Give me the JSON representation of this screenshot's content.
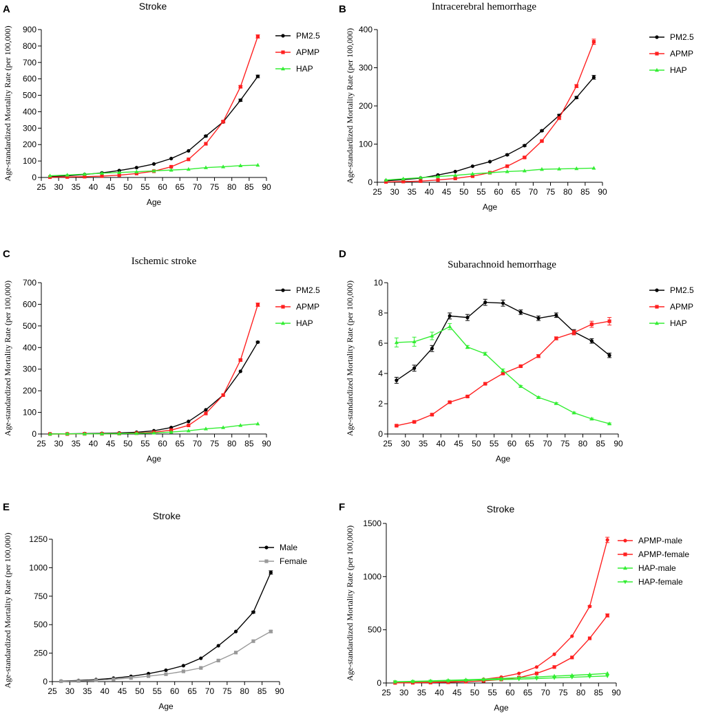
{
  "chart_data": [
    {
      "panel": "A",
      "type": "line",
      "title": "Stroke",
      "xlabel": "Age",
      "ylabel": "Age-standardized Mortality Rate (per 100,000)",
      "xlim": [
        25,
        90
      ],
      "ylim": [
        0,
        900
      ],
      "xticks": [
        25,
        30,
        35,
        40,
        45,
        50,
        55,
        60,
        65,
        70,
        75,
        80,
        85,
        90
      ],
      "yticks": [
        0,
        100,
        200,
        300,
        400,
        500,
        600,
        700,
        800,
        900
      ],
      "x": [
        27.5,
        32.5,
        37.5,
        42.5,
        47.5,
        52.5,
        57.5,
        62.5,
        67.5,
        72.5,
        77.5,
        82.5,
        87.5
      ],
      "series": [
        {
          "name": "PM2.5",
          "color": "#000000",
          "marker": "circle",
          "values": [
            5,
            10,
            18,
            28,
            42,
            60,
            82,
            115,
            162,
            252,
            338,
            470,
            615
          ],
          "err": [
            2,
            2,
            2,
            2,
            2,
            2,
            2,
            3,
            4,
            5,
            6,
            7,
            8
          ]
        },
        {
          "name": "APMP",
          "color": "#ff2020",
          "marker": "square",
          "values": [
            2,
            3,
            5,
            8,
            14,
            24,
            38,
            65,
            110,
            205,
            340,
            552,
            858
          ],
          "err": [
            1,
            1,
            1,
            1,
            1,
            1,
            1,
            2,
            3,
            4,
            5,
            7,
            10
          ]
        },
        {
          "name": "HAP",
          "color": "#33ee33",
          "marker": "triangle",
          "values": [
            10,
            15,
            20,
            26,
            30,
            35,
            40,
            45,
            50,
            60,
            65,
            72,
            75
          ],
          "err": [
            1,
            1,
            1,
            1,
            1,
            1,
            1,
            1,
            1,
            1,
            1,
            1,
            2
          ]
        }
      ]
    },
    {
      "panel": "B",
      "type": "line",
      "title": "Intracerebral hemorrhage",
      "xlabel": "Age",
      "ylabel": "Age-standardized Mortality Rate (per 100,000)",
      "xlim": [
        25,
        90
      ],
      "ylim": [
        0,
        400
      ],
      "xticks": [
        25,
        30,
        35,
        40,
        45,
        50,
        55,
        60,
        65,
        70,
        75,
        80,
        85,
        90
      ],
      "yticks": [
        0,
        100,
        200,
        300,
        400
      ],
      "x": [
        27.5,
        32.5,
        37.5,
        42.5,
        47.5,
        52.5,
        57.5,
        62.5,
        67.5,
        72.5,
        77.5,
        82.5,
        87.5
      ],
      "series": [
        {
          "name": "PM2.5",
          "color": "#000000",
          "marker": "circle",
          "values": [
            4,
            7,
            11,
            19,
            28,
            42,
            54,
            72,
            96,
            135,
            175,
            222,
            275
          ],
          "err": [
            1,
            1,
            1,
            1,
            1,
            1,
            1,
            2,
            2,
            2,
            3,
            3,
            5
          ]
        },
        {
          "name": "APMP",
          "color": "#ff2020",
          "marker": "square",
          "values": [
            1,
            2,
            3,
            6,
            10,
            16,
            25,
            42,
            65,
            108,
            168,
            252,
            368
          ],
          "err": [
            1,
            1,
            1,
            1,
            1,
            1,
            1,
            1,
            2,
            2,
            3,
            4,
            7
          ]
        },
        {
          "name": "HAP",
          "color": "#33ee33",
          "marker": "triangle",
          "values": [
            6,
            9,
            12,
            15,
            18,
            22,
            25,
            28,
            30,
            34,
            35,
            36,
            37
          ],
          "err": [
            1,
            1,
            1,
            1,
            1,
            1,
            1,
            1,
            1,
            1,
            1,
            1,
            1
          ]
        }
      ]
    },
    {
      "panel": "C",
      "type": "line",
      "title": "Ischemic stroke",
      "xlabel": "Age",
      "ylabel": "Age-standardized Mortality Rate (per 100,000)",
      "xlim": [
        25,
        90
      ],
      "ylim": [
        0,
        700
      ],
      "xticks": [
        25,
        30,
        35,
        40,
        45,
        50,
        55,
        60,
        65,
        70,
        75,
        80,
        85,
        90
      ],
      "yticks": [
        0,
        100,
        200,
        300,
        400,
        500,
        600,
        700
      ],
      "x": [
        27.5,
        32.5,
        37.5,
        42.5,
        47.5,
        52.5,
        57.5,
        62.5,
        67.5,
        72.5,
        77.5,
        82.5,
        87.5
      ],
      "series": [
        {
          "name": "PM2.5",
          "color": "#000000",
          "marker": "circle",
          "values": [
            1,
            1,
            2,
            3,
            5,
            8,
            15,
            30,
            58,
            112,
            180,
            290,
            425
          ],
          "err": [
            1,
            1,
            1,
            1,
            1,
            1,
            1,
            1,
            2,
            2,
            3,
            3,
            4
          ]
        },
        {
          "name": "APMP",
          "color": "#ff2020",
          "marker": "square",
          "values": [
            0,
            0,
            1,
            1,
            2,
            4,
            8,
            18,
            40,
            95,
            180,
            342,
            598
          ],
          "err": [
            0,
            0,
            0,
            1,
            1,
            1,
            1,
            1,
            2,
            2,
            3,
            5,
            8
          ]
        },
        {
          "name": "HAP",
          "color": "#33ee33",
          "marker": "triangle",
          "values": [
            0,
            1,
            1,
            1,
            2,
            3,
            5,
            9,
            15,
            24,
            30,
            40,
            47
          ],
          "err": [
            0,
            0,
            0,
            0,
            0,
            0,
            0,
            1,
            1,
            1,
            1,
            1,
            1
          ]
        }
      ]
    },
    {
      "panel": "D",
      "type": "line",
      "title": "Subarachnoid hemorrhage",
      "xlabel": "Age",
      "ylabel": "Age-standardized Mortality Rate (per 100,000)",
      "xlim": [
        25,
        90
      ],
      "ylim": [
        0,
        10
      ],
      "xticks": [
        25,
        30,
        35,
        40,
        45,
        50,
        55,
        60,
        65,
        70,
        75,
        80,
        85,
        90
      ],
      "yticks": [
        0,
        2,
        4,
        6,
        8,
        10
      ],
      "x": [
        27.5,
        32.5,
        37.5,
        42.5,
        47.5,
        52.5,
        57.5,
        62.5,
        67.5,
        72.5,
        77.5,
        82.5,
        87.5
      ],
      "series": [
        {
          "name": "PM2.5",
          "color": "#000000",
          "marker": "circle",
          "values": [
            3.55,
            4.35,
            5.65,
            7.8,
            7.7,
            8.7,
            8.65,
            8.05,
            7.65,
            7.85,
            6.75,
            6.15,
            5.2
          ],
          "err": [
            0.2,
            0.2,
            0.2,
            0.2,
            0.2,
            0.2,
            0.2,
            0.15,
            0.15,
            0.15,
            0.15,
            0.15,
            0.15
          ]
        },
        {
          "name": "APMP",
          "color": "#ff2020",
          "marker": "square",
          "values": [
            0.55,
            0.8,
            1.28,
            2.1,
            2.48,
            3.32,
            4.0,
            4.48,
            5.15,
            6.32,
            6.7,
            7.25,
            7.45
          ],
          "err": [
            0.05,
            0.05,
            0.05,
            0.05,
            0.05,
            0.05,
            0.05,
            0.05,
            0.1,
            0.1,
            0.15,
            0.2,
            0.25
          ]
        },
        {
          "name": "HAP",
          "color": "#33ee33",
          "marker": "triangle",
          "values": [
            6.05,
            6.1,
            6.48,
            7.1,
            5.75,
            5.3,
            4.2,
            3.15,
            2.42,
            2.02,
            1.4,
            1.0,
            0.68
          ],
          "err": [
            0.3,
            0.3,
            0.25,
            0.2,
            0.1,
            0.1,
            0.1,
            0.05,
            0.05,
            0.05,
            0.05,
            0.05,
            0.05
          ]
        }
      ]
    },
    {
      "panel": "E",
      "type": "line",
      "title": "Stroke",
      "xlabel": "Age",
      "ylabel": "Age-standardized Mortality Rate (per 100,000)",
      "xlim": [
        25,
        90
      ],
      "ylim": [
        0,
        1250
      ],
      "xticks": [
        25,
        30,
        35,
        40,
        45,
        50,
        55,
        60,
        65,
        70,
        75,
        80,
        85,
        90
      ],
      "yticks": [
        0,
        250,
        500,
        750,
        1000,
        1250
      ],
      "x": [
        27.5,
        32.5,
        37.5,
        42.5,
        47.5,
        52.5,
        57.5,
        62.5,
        67.5,
        72.5,
        77.5,
        82.5,
        87.5
      ],
      "series": [
        {
          "name": "Male",
          "color": "#000000",
          "marker": "circle",
          "values": [
            5,
            10,
            18,
            30,
            46,
            70,
            100,
            140,
            205,
            315,
            440,
            610,
            958
          ],
          "err": [
            1,
            1,
            1,
            1,
            1,
            1,
            2,
            2,
            3,
            4,
            5,
            8,
            15
          ]
        },
        {
          "name": "Female",
          "color": "#999999",
          "marker": "square",
          "values": [
            3,
            6,
            12,
            20,
            32,
            48,
            65,
            90,
            120,
            185,
            255,
            355,
            440
          ],
          "err": [
            1,
            1,
            1,
            1,
            1,
            1,
            1,
            2,
            2,
            3,
            3,
            5,
            10
          ]
        }
      ]
    },
    {
      "panel": "F",
      "type": "line",
      "title": "Stroke",
      "xlabel": "Age",
      "ylabel": "Age-standardized Mortality Rate (per 100,000)",
      "xlim": [
        25,
        90
      ],
      "ylim": [
        0,
        1500
      ],
      "xticks": [
        25,
        30,
        35,
        40,
        45,
        50,
        55,
        60,
        65,
        70,
        75,
        80,
        85,
        90
      ],
      "yticks": [
        0,
        500,
        1000,
        1500
      ],
      "x": [
        27.5,
        32.5,
        37.5,
        42.5,
        47.5,
        52.5,
        57.5,
        62.5,
        67.5,
        72.5,
        77.5,
        82.5,
        87.5
      ],
      "series": [
        {
          "name": "APMP-male",
          "color": "#ff2020",
          "marker": "circle",
          "values": [
            2,
            5,
            9,
            14,
            22,
            35,
            55,
            90,
            150,
            270,
            440,
            720,
            1345
          ],
          "err": [
            1,
            1,
            1,
            1,
            1,
            1,
            1,
            2,
            3,
            4,
            6,
            8,
            25
          ]
        },
        {
          "name": "APMP-female",
          "color": "#ff2020",
          "marker": "square",
          "values": [
            1,
            2,
            4,
            7,
            12,
            20,
            33,
            50,
            90,
            150,
            240,
            420,
            635
          ],
          "err": [
            1,
            1,
            1,
            1,
            1,
            1,
            1,
            2,
            2,
            3,
            4,
            6,
            15
          ]
        },
        {
          "name": "HAP-male",
          "color": "#33ee33",
          "marker": "triangle",
          "values": [
            12,
            16,
            20,
            25,
            30,
            36,
            42,
            50,
            57,
            65,
            72,
            80,
            90
          ],
          "err": [
            1,
            1,
            1,
            1,
            1,
            1,
            1,
            1,
            1,
            1,
            1,
            2,
            3
          ]
        },
        {
          "name": "HAP-female",
          "color": "#33ee33",
          "marker": "tri-down",
          "values": [
            10,
            13,
            16,
            20,
            24,
            28,
            32,
            36,
            42,
            48,
            54,
            60,
            66
          ],
          "err": [
            1,
            1,
            1,
            1,
            1,
            1,
            1,
            1,
            1,
            1,
            1,
            2,
            3
          ]
        }
      ]
    }
  ]
}
